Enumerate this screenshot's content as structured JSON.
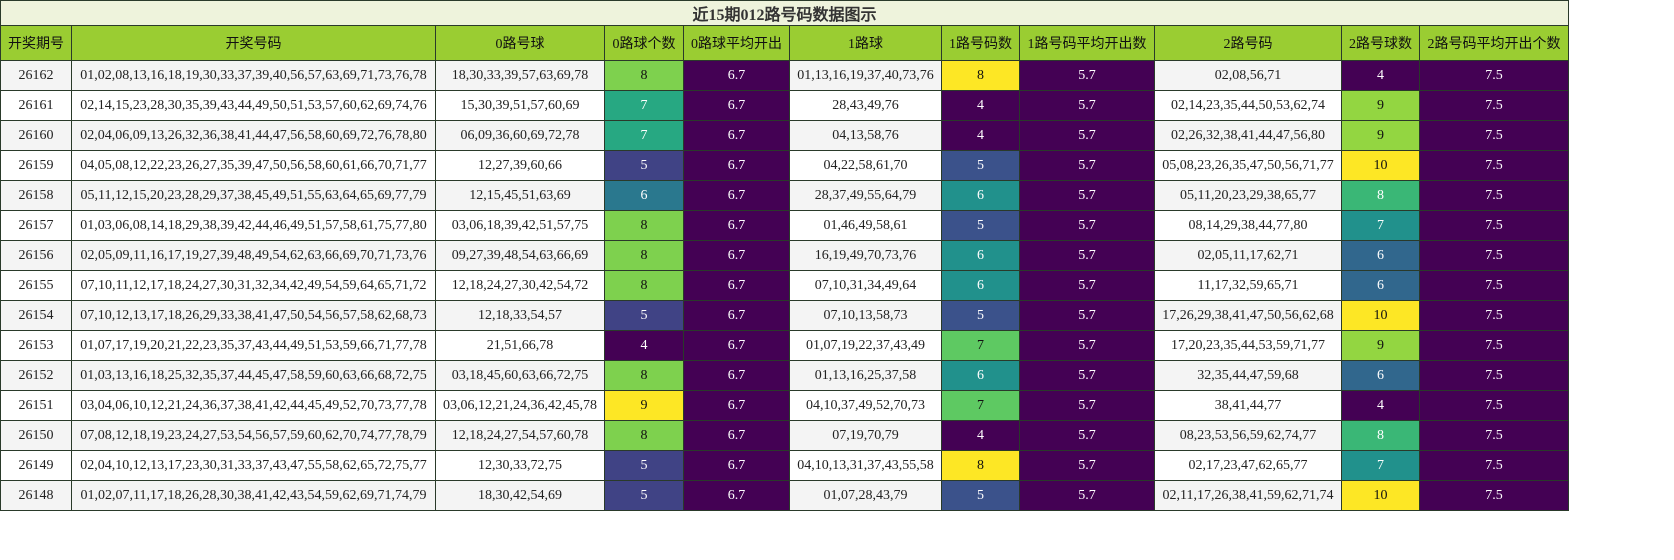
{
  "table": {
    "title": "近15期012路号码数据图示",
    "columns": [
      "开奖期号",
      "开奖号码",
      "0路号球",
      "0路球个数",
      "0路球平均开出",
      "1路球",
      "1路号码数",
      "1路号码平均开出数",
      "2路号码",
      "2路号球数",
      "2路号码平均开出个数"
    ],
    "rows": [
      [
        "26162",
        "01,02,08,13,16,18,19,30,33,37,39,40,56,57,63,69,71,73,76,78",
        "18,30,33,39,57,63,69,78",
        8,
        6.7,
        "01,13,16,19,37,40,73,76",
        8,
        5.7,
        "02,08,56,71",
        4,
        7.5
      ],
      [
        "26161",
        "02,14,15,23,28,30,35,39,43,44,49,50,51,53,57,60,62,69,74,76",
        "15,30,39,51,57,60,69",
        7,
        6.7,
        "28,43,49,76",
        4,
        5.7,
        "02,14,23,35,44,50,53,62,74",
        9,
        7.5
      ],
      [
        "26160",
        "02,04,06,09,13,26,32,36,38,41,44,47,56,58,60,69,72,76,78,80",
        "06,09,36,60,69,72,78",
        7,
        6.7,
        "04,13,58,76",
        4,
        5.7,
        "02,26,32,38,41,44,47,56,80",
        9,
        7.5
      ],
      [
        "26159",
        "04,05,08,12,22,23,26,27,35,39,47,50,56,58,60,61,66,70,71,77",
        "12,27,39,60,66",
        5,
        6.7,
        "04,22,58,61,70",
        5,
        5.7,
        "05,08,23,26,35,47,50,56,71,77",
        10,
        7.5
      ],
      [
        "26158",
        "05,11,12,15,20,23,28,29,37,38,45,49,51,55,63,64,65,69,77,79",
        "12,15,45,51,63,69",
        6,
        6.7,
        "28,37,49,55,64,79",
        6,
        5.7,
        "05,11,20,23,29,38,65,77",
        8,
        7.5
      ],
      [
        "26157",
        "01,03,06,08,14,18,29,38,39,42,44,46,49,51,57,58,61,75,77,80",
        "03,06,18,39,42,51,57,75",
        8,
        6.7,
        "01,46,49,58,61",
        5,
        5.7,
        "08,14,29,38,44,77,80",
        7,
        7.5
      ],
      [
        "26156",
        "02,05,09,11,16,17,19,27,39,48,49,54,62,63,66,69,70,71,73,76",
        "09,27,39,48,54,63,66,69",
        8,
        6.7,
        "16,19,49,70,73,76",
        6,
        5.7,
        "02,05,11,17,62,71",
        6,
        7.5
      ],
      [
        "26155",
        "07,10,11,12,17,18,24,27,30,31,32,34,42,49,54,59,64,65,71,72",
        "12,18,24,27,30,42,54,72",
        8,
        6.7,
        "07,10,31,34,49,64",
        6,
        5.7,
        "11,17,32,59,65,71",
        6,
        7.5
      ],
      [
        "26154",
        "07,10,12,13,17,18,26,29,33,38,41,47,50,54,56,57,58,62,68,73",
        "12,18,33,54,57",
        5,
        6.7,
        "07,10,13,58,73",
        5,
        5.7,
        "17,26,29,38,41,47,50,56,62,68",
        10,
        7.5
      ],
      [
        "26153",
        "01,07,17,19,20,21,22,23,35,37,43,44,49,51,53,59,66,71,77,78",
        "21,51,66,78",
        4,
        6.7,
        "01,07,19,22,37,43,49",
        7,
        5.7,
        "17,20,23,35,44,53,59,71,77",
        9,
        7.5
      ],
      [
        "26152",
        "01,03,13,16,18,25,32,35,37,44,45,47,58,59,60,63,66,68,72,75",
        "03,18,45,60,63,66,72,75",
        8,
        6.7,
        "01,13,16,25,37,58",
        6,
        5.7,
        "32,35,44,47,59,68",
        6,
        7.5
      ],
      [
        "26151",
        "03,04,06,10,12,21,24,36,37,38,41,42,44,45,49,52,70,73,77,78",
        "03,06,12,21,24,36,42,45,78",
        9,
        6.7,
        "04,10,37,49,52,70,73",
        7,
        5.7,
        "38,41,44,77",
        4,
        7.5
      ],
      [
        "26150",
        "07,08,12,18,19,23,24,27,53,54,56,57,59,60,62,70,74,77,78,79",
        "12,18,24,27,54,57,60,78",
        8,
        6.7,
        "07,19,70,79",
        4,
        5.7,
        "08,23,53,56,59,62,74,77",
        8,
        7.5
      ],
      [
        "26149",
        "02,04,10,12,13,17,23,30,31,33,37,43,47,55,58,62,65,72,75,77",
        "12,30,33,72,75",
        5,
        6.7,
        "04,10,13,31,37,43,55,58",
        8,
        5.7,
        "02,17,23,47,62,65,77",
        7,
        7.5
      ],
      [
        "26148",
        "01,02,07,11,17,18,26,28,30,38,41,42,43,54,59,62,69,71,74,79",
        "18,30,42,54,69",
        5,
        6.7,
        "01,07,28,43,79",
        5,
        5.7,
        "02,11,17,26,38,41,59,62,71,74",
        10,
        7.5
      ]
    ]
  }
}
